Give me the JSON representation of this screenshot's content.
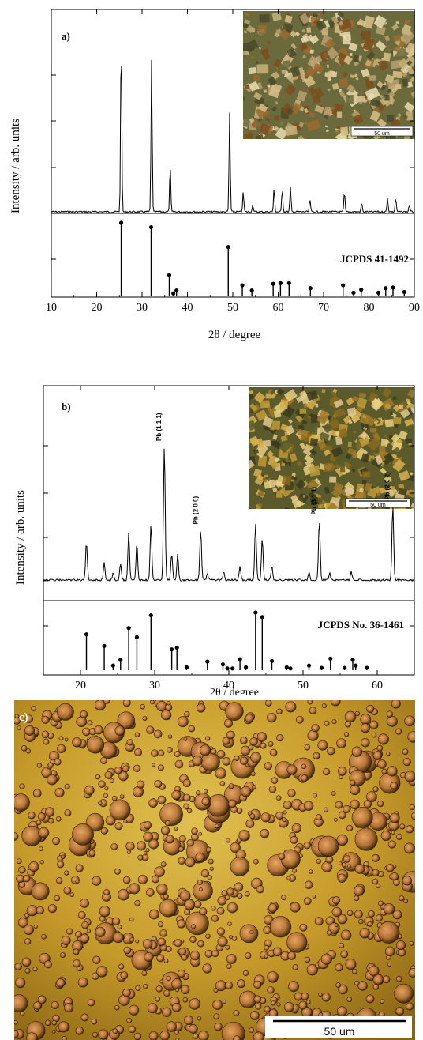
{
  "chart_data": [
    {
      "type": "line",
      "panel_label": "a)",
      "xlabel": "2θ / degree",
      "ylabel": "Intensity / arb. units",
      "xlim": [
        10,
        90
      ],
      "xticks": [
        "10",
        "20",
        "30",
        "40",
        "50",
        "60",
        "70",
        "80",
        "90"
      ],
      "reference_label": "JCPDS 41-1492",
      "inset_scale": "50 um",
      "pattern_peaks": [
        {
          "x": 25.4,
          "y": 100
        },
        {
          "x": 32.1,
          "y": 86
        },
        {
          "x": 36.2,
          "y": 26
        },
        {
          "x": 49.3,
          "y": 56
        },
        {
          "x": 52.3,
          "y": 11
        },
        {
          "x": 54.4,
          "y": 4
        },
        {
          "x": 59.1,
          "y": 13
        },
        {
          "x": 60.9,
          "y": 13
        },
        {
          "x": 62.7,
          "y": 14
        },
        {
          "x": 67.0,
          "y": 7
        },
        {
          "x": 74.6,
          "y": 11
        },
        {
          "x": 78.4,
          "y": 5
        },
        {
          "x": 84.1,
          "y": 8
        },
        {
          "x": 85.9,
          "y": 8
        },
        {
          "x": 88.9,
          "y": 4
        }
      ],
      "reference_peaks": [
        {
          "x": 25.4,
          "y": 100
        },
        {
          "x": 32.0,
          "y": 94
        },
        {
          "x": 36.0,
          "y": 29
        },
        {
          "x": 36.9,
          "y": 4
        },
        {
          "x": 37.6,
          "y": 8
        },
        {
          "x": 49.0,
          "y": 67
        },
        {
          "x": 52.1,
          "y": 15
        },
        {
          "x": 54.2,
          "y": 8
        },
        {
          "x": 58.9,
          "y": 17
        },
        {
          "x": 60.5,
          "y": 18
        },
        {
          "x": 62.4,
          "y": 18
        },
        {
          "x": 67.1,
          "y": 11
        },
        {
          "x": 74.3,
          "y": 15
        },
        {
          "x": 76.6,
          "y": 5
        },
        {
          "x": 78.3,
          "y": 9
        },
        {
          "x": 82.1,
          "y": 5
        },
        {
          "x": 83.7,
          "y": 11
        },
        {
          "x": 85.3,
          "y": 12
        },
        {
          "x": 87.8,
          "y": 6
        }
      ]
    },
    {
      "type": "line",
      "panel_label": "b)",
      "xlabel": "2θ / degree",
      "ylabel": "Intensity / arb. units",
      "xlim": [
        15,
        65
      ],
      "xticks": [
        "20",
        "30",
        "40",
        "50",
        "60"
      ],
      "reference_label": "JCPDS No. 36-1461",
      "inset_scale": "50 um",
      "annotations": [
        {
          "text": "Pb (1 1 1)",
          "x": 31.3
        },
        {
          "text": "Pb (2 0 0)",
          "x": 36.2
        },
        {
          "text": "Pb (3 1 1)",
          "x": 52.2
        },
        {
          "text": "Pb (2 0 2)",
          "x": 62.1
        }
      ],
      "pattern_peaks": [
        {
          "x": 20.8,
          "y": 28
        },
        {
          "x": 23.2,
          "y": 13
        },
        {
          "x": 24.4,
          "y": 5
        },
        {
          "x": 25.4,
          "y": 12
        },
        {
          "x": 26.5,
          "y": 35
        },
        {
          "x": 27.6,
          "y": 27
        },
        {
          "x": 29.5,
          "y": 41
        },
        {
          "x": 31.3,
          "y": 100
        },
        {
          "x": 32.3,
          "y": 20
        },
        {
          "x": 33.1,
          "y": 19
        },
        {
          "x": 36.2,
          "y": 38
        },
        {
          "x": 37.1,
          "y": 5
        },
        {
          "x": 39.3,
          "y": 6
        },
        {
          "x": 41.5,
          "y": 10
        },
        {
          "x": 43.6,
          "y": 42
        },
        {
          "x": 44.5,
          "y": 31
        },
        {
          "x": 45.8,
          "y": 10
        },
        {
          "x": 50.8,
          "y": 6
        },
        {
          "x": 52.2,
          "y": 45
        },
        {
          "x": 53.6,
          "y": 5
        },
        {
          "x": 56.5,
          "y": 6
        },
        {
          "x": 62.1,
          "y": 56
        }
      ],
      "reference_peaks": [
        {
          "x": 20.8,
          "y": 62
        },
        {
          "x": 23.2,
          "y": 42
        },
        {
          "x": 24.4,
          "y": 8
        },
        {
          "x": 25.4,
          "y": 18
        },
        {
          "x": 26.5,
          "y": 73
        },
        {
          "x": 27.6,
          "y": 57
        },
        {
          "x": 29.5,
          "y": 95
        },
        {
          "x": 32.3,
          "y": 36
        },
        {
          "x": 33.0,
          "y": 39
        },
        {
          "x": 34.3,
          "y": 5
        },
        {
          "x": 37.1,
          "y": 15
        },
        {
          "x": 39.2,
          "y": 10
        },
        {
          "x": 39.8,
          "y": 3
        },
        {
          "x": 40.5,
          "y": 3
        },
        {
          "x": 41.5,
          "y": 19
        },
        {
          "x": 42.3,
          "y": 5
        },
        {
          "x": 43.6,
          "y": 100
        },
        {
          "x": 44.5,
          "y": 92
        },
        {
          "x": 45.8,
          "y": 16
        },
        {
          "x": 47.8,
          "y": 5
        },
        {
          "x": 48.3,
          "y": 3
        },
        {
          "x": 50.8,
          "y": 8
        },
        {
          "x": 52.5,
          "y": 4
        },
        {
          "x": 53.7,
          "y": 20
        },
        {
          "x": 55.6,
          "y": 4
        },
        {
          "x": 56.7,
          "y": 18
        },
        {
          "x": 57.1,
          "y": 8
        },
        {
          "x": 58.6,
          "y": 4
        }
      ]
    }
  ],
  "panel_c": {
    "panel_label": "c)",
    "scale": "50 um"
  },
  "colors": {
    "axis": "#000000",
    "inset_dark": "#3a3a22",
    "inset_tan": "#b88a4a",
    "film_gold": "#c49a28",
    "film_dark": "#5a3a0a"
  }
}
